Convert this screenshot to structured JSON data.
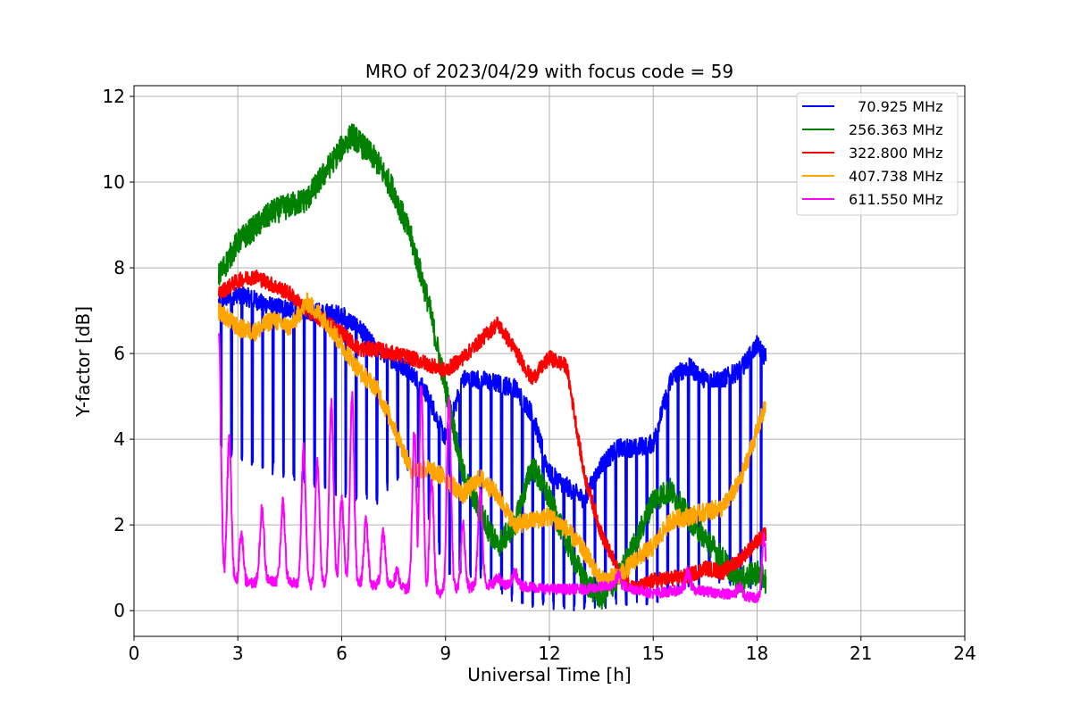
{
  "chart_data": {
    "type": "line",
    "title": "MRO of 2023/04/29 with focus code = 59",
    "xlabel": "Universal Time [h]",
    "ylabel": "Y-factor [dB]",
    "xlim": [
      0,
      24
    ],
    "ylim": [
      -0.6,
      12.25
    ],
    "xticks": [
      0,
      3,
      6,
      9,
      12,
      15,
      18,
      21,
      24
    ],
    "yticks": [
      0,
      2,
      4,
      6,
      8,
      10,
      12
    ],
    "grid": true,
    "legend_position": "top-right",
    "series": [
      {
        "name": "  70.925 MHz",
        "color": "#0000ff",
        "baseline": {
          "x": [
            2.45,
            3.0,
            4.0,
            5.0,
            6.0,
            6.5,
            7.0,
            8.0,
            8.5,
            9.0,
            9.5,
            10.0,
            11.0,
            11.5,
            12.0,
            12.5,
            13.0,
            13.5,
            14.0,
            14.5,
            15.0,
            15.5,
            16.0,
            16.5,
            17.0,
            17.5,
            18.0,
            18.25
          ],
          "y": [
            7.2,
            7.4,
            7.1,
            7.0,
            6.9,
            6.6,
            6.1,
            5.6,
            5.0,
            4.0,
            5.4,
            5.4,
            5.2,
            4.6,
            3.2,
            2.9,
            2.6,
            3.4,
            3.8,
            3.8,
            3.9,
            5.4,
            5.7,
            5.4,
            5.4,
            5.6,
            6.2,
            5.9
          ]
        },
        "dips": {
          "start": 2.5,
          "end": 18.25,
          "spacing": 0.3,
          "depths": [
            {
              "x": 2.5,
              "y": 3.8
            },
            {
              "x": 5.0,
              "y": 3.0
            },
            {
              "x": 7.0,
              "y": 2.6
            },
            {
              "x": 8.0,
              "y": 3.5
            },
            {
              "x": 9.0,
              "y": 1.0
            },
            {
              "x": 10.0,
              "y": 0.9
            },
            {
              "x": 11.0,
              "y": 0.3
            },
            {
              "x": 12.5,
              "y": 0.1
            },
            {
              "x": 13.5,
              "y": 0.2
            },
            {
              "x": 15.0,
              "y": 0.3
            },
            {
              "x": 16.5,
              "y": 0.8
            },
            {
              "x": 18.25,
              "y": 0.6
            }
          ]
        }
      },
      {
        "name": "256.363 MHz",
        "color": "#008000",
        "baseline": {
          "x": [
            2.45,
            3.0,
            4.0,
            5.0,
            5.5,
            6.0,
            6.3,
            7.0,
            7.5,
            8.0,
            8.5,
            9.0,
            9.5,
            10.0,
            10.5,
            11.0,
            11.5,
            12.0,
            12.5,
            13.0,
            13.5,
            14.0,
            14.5,
            15.0,
            15.5,
            16.0,
            16.5,
            17.0,
            17.5,
            18.0,
            18.25
          ],
          "y": [
            7.8,
            8.6,
            9.3,
            9.6,
            10.2,
            10.8,
            11.1,
            10.5,
            9.8,
            8.7,
            7.2,
            5.2,
            3.2,
            2.3,
            1.5,
            2.0,
            3.4,
            2.6,
            1.6,
            0.7,
            0.3,
            0.8,
            1.6,
            2.6,
            2.8,
            2.2,
            1.7,
            1.2,
            0.7,
            0.9,
            0.7
          ]
        }
      },
      {
        "name": "322.800 MHz",
        "color": "#ff0000",
        "baseline": {
          "x": [
            2.45,
            3.0,
            3.5,
            4.0,
            4.5,
            5.0,
            6.0,
            6.5,
            7.0,
            8.0,
            9.0,
            9.5,
            10.0,
            10.5,
            11.0,
            11.5,
            12.0,
            12.5,
            13.0,
            13.5,
            14.0,
            14.5,
            15.0,
            16.0,
            16.5,
            17.0,
            17.5,
            18.0,
            18.25
          ],
          "y": [
            7.4,
            7.7,
            7.8,
            7.6,
            7.4,
            7.0,
            6.5,
            6.1,
            6.1,
            5.9,
            5.6,
            5.9,
            6.3,
            6.7,
            6.1,
            5.4,
            5.9,
            5.7,
            3.2,
            1.8,
            0.9,
            0.5,
            0.7,
            0.8,
            1.0,
            0.9,
            1.2,
            1.6,
            1.8
          ]
        }
      },
      {
        "name": "407.738 MHz",
        "color": "#ffa500",
        "baseline": {
          "x": [
            2.45,
            3.0,
            3.5,
            4.0,
            4.5,
            5.0,
            5.5,
            6.0,
            6.5,
            7.0,
            7.5,
            8.0,
            8.5,
            9.0,
            9.5,
            10.0,
            10.5,
            11.0,
            11.5,
            12.0,
            12.5,
            13.0,
            13.5,
            14.0,
            14.5,
            15.0,
            15.5,
            16.0,
            16.5,
            17.0,
            17.5,
            18.0,
            18.25
          ],
          "y": [
            7.0,
            6.6,
            6.5,
            6.8,
            6.6,
            7.2,
            6.8,
            6.2,
            5.6,
            5.2,
            4.3,
            3.3,
            3.3,
            3.1,
            2.7,
            3.1,
            2.7,
            2.0,
            2.1,
            2.2,
            1.9,
            1.4,
            0.7,
            0.8,
            1.2,
            1.5,
            2.1,
            2.2,
            2.3,
            2.4,
            3.0,
            4.2,
            4.8
          ]
        }
      },
      {
        "name": "611.550 MHz",
        "color": "#ff00ff",
        "baseline": {
          "x": [
            2.45,
            3.0,
            4.0,
            5.0,
            6.0,
            7.0,
            8.0,
            8.5,
            9.0,
            10.0,
            11.0,
            12.0,
            13.0,
            14.0,
            15.0,
            16.0,
            17.0,
            18.0,
            18.25
          ],
          "y": [
            0.8,
            0.6,
            0.7,
            0.6,
            0.6,
            0.6,
            0.5,
            0.4,
            0.4,
            0.6,
            0.6,
            0.5,
            0.5,
            0.6,
            0.4,
            0.5,
            0.4,
            0.3,
            0.3
          ]
        },
        "peaks": [
          {
            "x": 2.45,
            "y": 6.5
          },
          {
            "x": 2.75,
            "y": 4.0
          },
          {
            "x": 3.1,
            "y": 1.8
          },
          {
            "x": 3.7,
            "y": 2.4
          },
          {
            "x": 4.3,
            "y": 2.5
          },
          {
            "x": 4.9,
            "y": 3.8
          },
          {
            "x": 5.3,
            "y": 3.5
          },
          {
            "x": 5.7,
            "y": 4.9
          },
          {
            "x": 6.0,
            "y": 2.6
          },
          {
            "x": 6.3,
            "y": 5.0
          },
          {
            "x": 6.7,
            "y": 2.1
          },
          {
            "x": 7.2,
            "y": 1.8
          },
          {
            "x": 7.6,
            "y": 0.9
          },
          {
            "x": 8.1,
            "y": 4.2
          },
          {
            "x": 8.3,
            "y": 5.2
          },
          {
            "x": 8.6,
            "y": 3.1
          },
          {
            "x": 9.1,
            "y": 4.9
          },
          {
            "x": 9.5,
            "y": 2.0
          },
          {
            "x": 10.0,
            "y": 2.8
          },
          {
            "x": 10.5,
            "y": 0.8
          },
          {
            "x": 11.0,
            "y": 0.9
          },
          {
            "x": 14.0,
            "y": 0.8
          },
          {
            "x": 16.0,
            "y": 0.9
          },
          {
            "x": 17.5,
            "y": 0.6
          },
          {
            "x": 18.2,
            "y": 1.7
          }
        ]
      }
    ]
  }
}
